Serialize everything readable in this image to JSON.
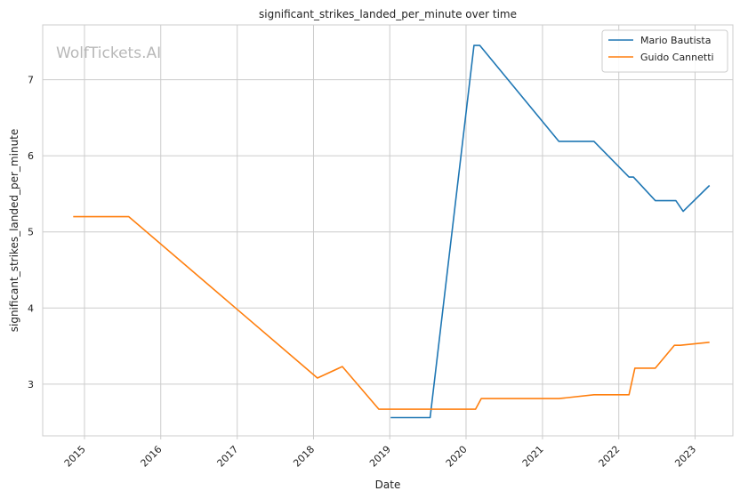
{
  "chart_data": {
    "type": "line",
    "title": "significant_strikes_landed_per_minute over time",
    "xlabel": "Date",
    "ylabel": "significant_strikes_landed_per_minute",
    "watermark": "WolfTickets.AI",
    "xlim": [
      "2014-06-15",
      "2023-07-01"
    ],
    "ylim": [
      2.32,
      7.72
    ],
    "x_ticks": [
      "2015-01-01",
      "2016-01-01",
      "2017-01-01",
      "2018-01-01",
      "2019-01-01",
      "2020-01-01",
      "2021-01-01",
      "2022-01-01",
      "2023-01-01"
    ],
    "x_tick_labels": [
      "2015",
      "2016",
      "2017",
      "2018",
      "2019",
      "2020",
      "2021",
      "2022",
      "2023"
    ],
    "y_ticks": [
      3,
      4,
      5,
      6,
      7
    ],
    "y_tick_labels": [
      "3",
      "4",
      "5",
      "6",
      "7"
    ],
    "grid": true,
    "legend_position": "top-right",
    "series": [
      {
        "name": "Mario Bautista",
        "color": "#1f77b4",
        "points": [
          [
            "2019-01-05",
            2.56
          ],
          [
            "2019-07-13",
            2.56
          ],
          [
            "2020-02-08",
            7.45
          ],
          [
            "2020-03-07",
            7.45
          ],
          [
            "2021-03-20",
            6.19
          ],
          [
            "2021-09-04",
            6.19
          ],
          [
            "2022-02-19",
            5.72
          ],
          [
            "2022-03-12",
            5.72
          ],
          [
            "2022-06-25",
            5.41
          ],
          [
            "2022-10-01",
            5.41
          ],
          [
            "2022-11-05",
            5.27
          ],
          [
            "2023-03-11",
            5.61
          ]
        ]
      },
      {
        "name": "Guido Cannetti",
        "color": "#ff7f0e",
        "points": [
          [
            "2014-11-08",
            5.2
          ],
          [
            "2015-08-01",
            5.2
          ],
          [
            "2018-01-20",
            3.08
          ],
          [
            "2018-05-19",
            3.23
          ],
          [
            "2018-11-10",
            2.67
          ],
          [
            "2020-02-15",
            2.67
          ],
          [
            "2020-03-14",
            2.81
          ],
          [
            "2021-03-20",
            2.81
          ],
          [
            "2021-09-04",
            2.86
          ],
          [
            "2022-02-19",
            2.86
          ],
          [
            "2022-03-19",
            3.21
          ],
          [
            "2022-06-25",
            3.21
          ],
          [
            "2022-09-24",
            3.51
          ],
          [
            "2022-10-22",
            3.51
          ],
          [
            "2023-03-11",
            3.55
          ]
        ]
      }
    ]
  }
}
